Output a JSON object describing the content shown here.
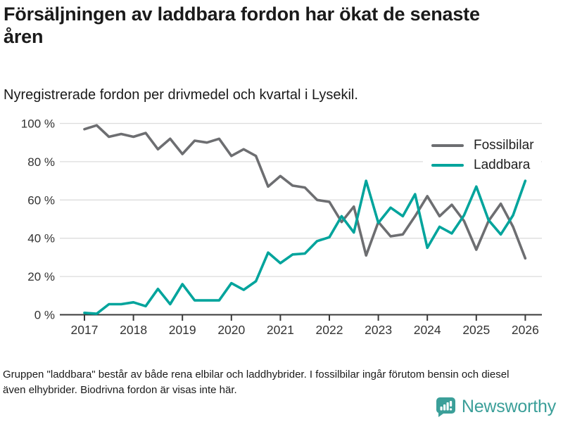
{
  "header": {
    "title": "Försäljningen av laddbara fordon har ökat de senaste åren",
    "subtitle": "Nyregistrerade fordon per drivmedel och kvartal i Lysekil."
  },
  "chart_data": {
    "type": "line",
    "x_unit": "quarter",
    "quarters": [
      "2017 Q1",
      "2017 Q2",
      "2017 Q3",
      "2017 Q4",
      "2018 Q1",
      "2018 Q2",
      "2018 Q3",
      "2018 Q4",
      "2019 Q1",
      "2019 Q2",
      "2019 Q3",
      "2019 Q4",
      "2020 Q1",
      "2020 Q2",
      "2020 Q3",
      "2020 Q4",
      "2021 Q1",
      "2021 Q2",
      "2021 Q3",
      "2021 Q4",
      "2022 Q1",
      "2022 Q2",
      "2022 Q3",
      "2022 Q4",
      "2023 Q1",
      "2023 Q2",
      "2023 Q3",
      "2023 Q4",
      "2024 Q1",
      "2024 Q2",
      "2024 Q3",
      "2024 Q4",
      "2025 Q1",
      "2025 Q2",
      "2025 Q3",
      "2025 Q4",
      "2026 Q1"
    ],
    "series": [
      {
        "name": "Fossilbilar",
        "color": "#6d6e71",
        "values": [
          97,
          99,
          93,
          94.5,
          93,
          95,
          86.5,
          92,
          84,
          91,
          90,
          92,
          83,
          86.5,
          83,
          67,
          72.5,
          67.5,
          66.5,
          60,
          59,
          48.5,
          56.5,
          31,
          48.5,
          41,
          42,
          51.5,
          62,
          51.5,
          57.5,
          49,
          34,
          49,
          58,
          46,
          29.5
        ]
      },
      {
        "name": "Laddbara",
        "color": "#00a49c",
        "values": [
          1,
          0.5,
          5.5,
          5.5,
          6.5,
          4.5,
          13.5,
          5.5,
          16,
          7.5,
          7.5,
          7.5,
          16.5,
          13,
          17.5,
          32.5,
          27,
          31.5,
          32,
          38.5,
          40.5,
          51.5,
          43,
          70,
          48,
          56,
          51.5,
          63,
          35,
          46,
          42.5,
          52,
          67,
          49.5,
          42,
          52,
          70
        ]
      }
    ],
    "ylim": [
      0,
      100
    ],
    "y_tick_values": [
      0,
      20,
      40,
      60,
      80,
      100
    ],
    "y_tick_labels": [
      "0 %",
      "20 %",
      "40 %",
      "60 %",
      "80 %",
      "100 %"
    ],
    "x_tick_quarter_indices": [
      0,
      4,
      8,
      12,
      16,
      20,
      24,
      28,
      32,
      36
    ],
    "x_tick_labels": [
      "2017",
      "2018",
      "2019",
      "2020",
      "2021",
      "2022",
      "2023",
      "2024",
      "2025",
      "2026"
    ],
    "grid": "horizontal",
    "legend_position": "top-right",
    "gridline_color": "#dcdcdc",
    "axis_color": "#3a3a3a",
    "tick_label_color": "#333333"
  },
  "footnote": {
    "text": "Gruppen \"laddbara\" består av både rena elbilar och laddhybrider. I fossilbilar ingår förutom bensin och diesel även elhybrider. Biodrivna fordon är visas inte här."
  },
  "logo": {
    "text": "Newsworthy",
    "icon": "bar-chart-speech-bubble-icon",
    "color": "#3b9f99"
  }
}
